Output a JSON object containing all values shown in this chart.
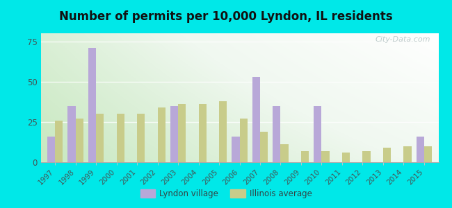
{
  "years": [
    1997,
    1998,
    1999,
    2000,
    2001,
    2002,
    2003,
    2004,
    2005,
    2006,
    2007,
    2008,
    2009,
    2010,
    2011,
    2012,
    2013,
    2014,
    2015
  ],
  "lyndon": [
    16,
    35,
    71,
    0,
    0,
    0,
    35,
    0,
    0,
    16,
    53,
    35,
    0,
    35,
    0,
    0,
    0,
    0,
    16
  ],
  "illinois": [
    26,
    27,
    30,
    30,
    30,
    34,
    36,
    36,
    38,
    27,
    19,
    11,
    7,
    7,
    6,
    7,
    9,
    10,
    10
  ],
  "title": "Number of permits per 10,000 Lyndon, IL residents",
  "lyndon_color": "#b8a8d8",
  "illinois_color": "#c8cc8a",
  "bar_width": 0.38,
  "ylim": [
    0,
    80
  ],
  "yticks": [
    0,
    25,
    50,
    75
  ],
  "outer_bg": "#00e8e8",
  "legend_lyndon": "Lyndon village",
  "legend_illinois": "Illinois average",
  "title_fontsize": 12,
  "watermark": "City-Data.com"
}
